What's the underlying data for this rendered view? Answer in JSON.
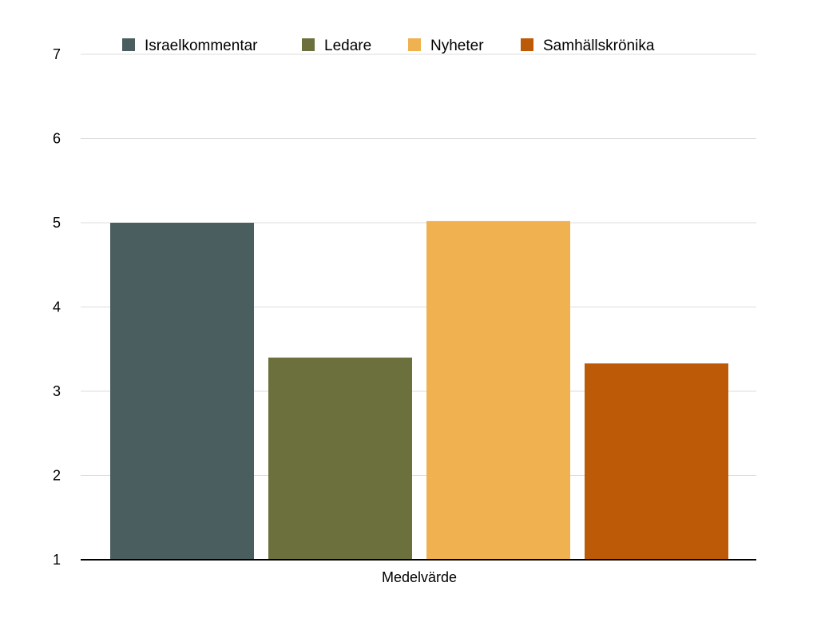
{
  "chart_data": {
    "type": "bar",
    "categories": [
      "Medelvärde"
    ],
    "series": [
      {
        "name": "Israelkommentar",
        "values": [
          5.0
        ],
        "color": "#4a5e60"
      },
      {
        "name": "Ledare",
        "values": [
          3.4
        ],
        "color": "#6b703c"
      },
      {
        "name": "Nyheter",
        "values": [
          5.02
        ],
        "color": "#f0b250"
      },
      {
        "name": "Samhällskrönika",
        "values": [
          3.33
        ],
        "color": "#bd5a08"
      }
    ],
    "ylim": [
      1,
      7
    ],
    "yticks": [
      "1",
      "2",
      "3",
      "4",
      "5",
      "6",
      "7"
    ],
    "grid": true,
    "legend_position": "top"
  }
}
